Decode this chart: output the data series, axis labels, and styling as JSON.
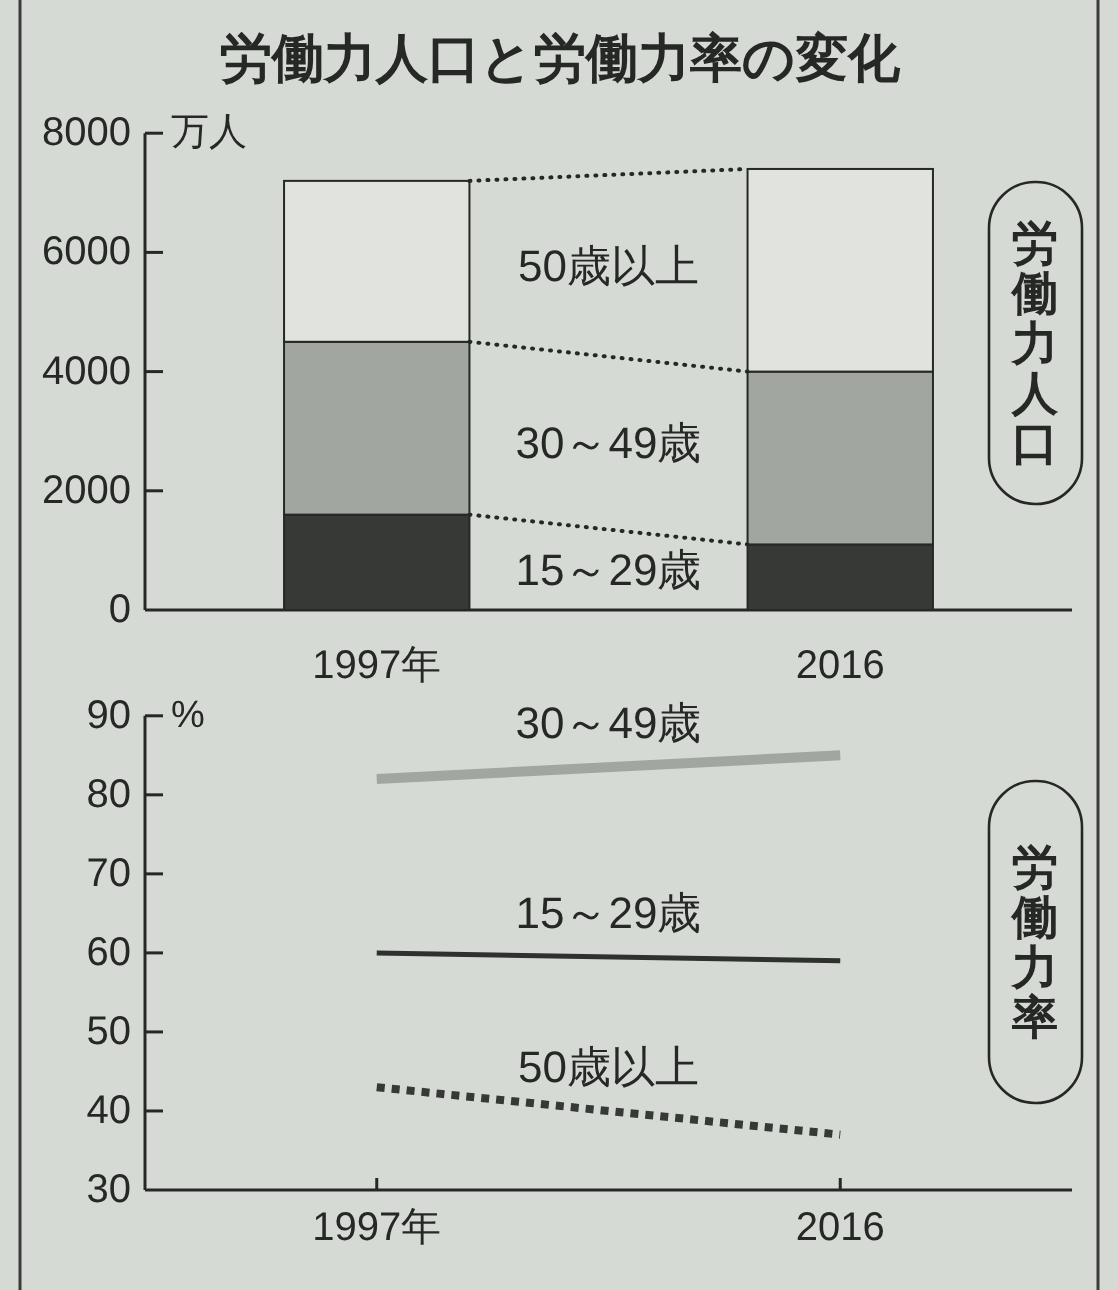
{
  "chart_data": [
    {
      "type": "bar",
      "title": "労働力人口と労働力率の変化",
      "ylabel": "万人",
      "categories": [
        "1997年",
        "2016"
      ],
      "stacked": true,
      "ylim": [
        0,
        8000
      ],
      "yticks": [
        0,
        2000,
        4000,
        6000,
        8000
      ],
      "series": [
        {
          "name": "15～29歳",
          "color": "#363936",
          "values": [
            1600,
            1100
          ]
        },
        {
          "name": "30～49歳",
          "color": "#a2a6a1",
          "values": [
            2900,
            2900
          ]
        },
        {
          "name": "50歳以上",
          "color": "#e1e4de",
          "values": [
            2700,
            3400
          ]
        }
      ],
      "annotations": [
        "労働力人口"
      ]
    },
    {
      "type": "line",
      "ylabel": "%",
      "categories": [
        "1997年",
        "2016"
      ],
      "ylim": [
        30,
        90
      ],
      "yticks": [
        30,
        40,
        50,
        60,
        70,
        80,
        90
      ],
      "series": [
        {
          "name": "30～49歳",
          "color": "#a2a6a1",
          "values": [
            82,
            85
          ],
          "line_style": "solid"
        },
        {
          "name": "15～29歳",
          "color": "#2e312e",
          "values": [
            60,
            59
          ],
          "line_style": "solid"
        },
        {
          "name": "50歳以上",
          "color": "#363936",
          "values": [
            43,
            37
          ],
          "line_style": "dotted"
        }
      ],
      "annotations": [
        "労働力率"
      ]
    }
  ]
}
